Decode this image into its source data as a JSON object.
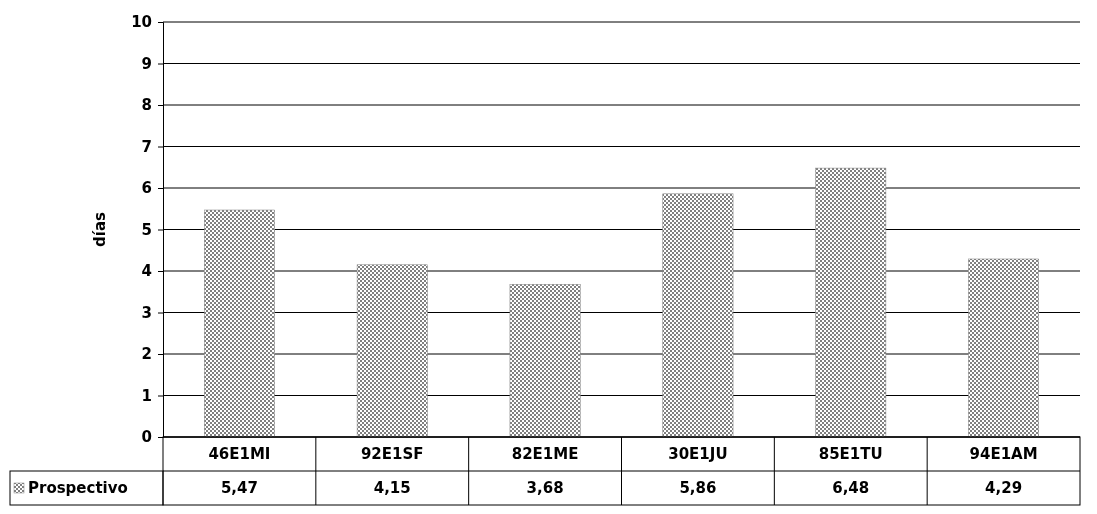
{
  "chart_data": {
    "type": "bar",
    "ylabel": "días",
    "categories": [
      "46E1MI",
      "92E1SF",
      "82E1ME",
      "30E1JU",
      "85E1TU",
      "94E1AM"
    ],
    "series": [
      {
        "name": "Prospectivo",
        "color": "#808080",
        "values": [
          5.47,
          4.15,
          3.68,
          5.86,
          6.48,
          4.29
        ]
      }
    ],
    "value_labels": [
      "5,47",
      "4,15",
      "3,68",
      "5,86",
      "6,48",
      "4,29"
    ],
    "ylim": [
      0,
      10
    ],
    "yticks": [
      0,
      1,
      2,
      3,
      4,
      5,
      6,
      7,
      8,
      9,
      10
    ],
    "grid": "y",
    "legend": "bottom left"
  }
}
